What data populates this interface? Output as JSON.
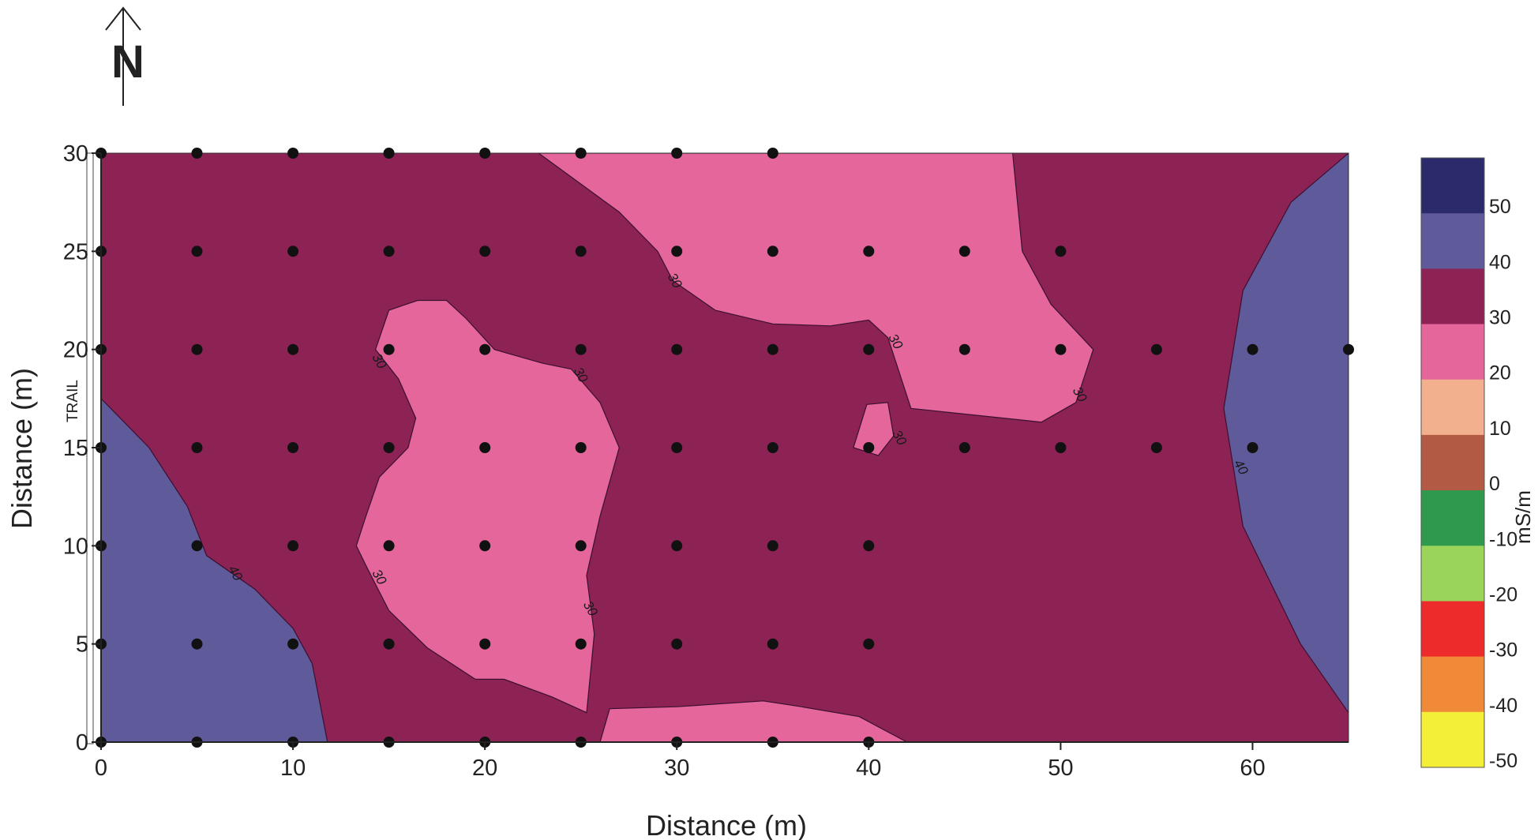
{
  "north_arrow": {
    "label": "N"
  },
  "trail_label": "TRAIL",
  "colorbar": {
    "unit": "mS/m",
    "levels": [
      50,
      40,
      30,
      20,
      10,
      0,
      -10,
      -20,
      -30,
      -40,
      -50
    ],
    "bins": [
      {
        "from": 50,
        "to": 60,
        "color": "#2b2a6b"
      },
      {
        "from": 40,
        "to": 50,
        "color": "#5f5a9a"
      },
      {
        "from": 30,
        "to": 40,
        "color": "#8d2255"
      },
      {
        "from": 20,
        "to": 30,
        "color": "#e4669a"
      },
      {
        "from": 10,
        "to": 20,
        "color": "#f2b08f"
      },
      {
        "from": 0,
        "to": 10,
        "color": "#b35a45"
      },
      {
        "from": -10,
        "to": 0,
        "color": "#2f9a4e"
      },
      {
        "from": -20,
        "to": -10,
        "color": "#9bd45a"
      },
      {
        "from": -30,
        "to": -20,
        "color": "#ee2b2b"
      },
      {
        "from": -40,
        "to": -30,
        "color": "#f08a38"
      },
      {
        "from": -50,
        "to": -40,
        "color": "#f3ee38"
      }
    ]
  },
  "chart_data": {
    "type": "contour",
    "xlabel": "Distance (m)",
    "ylabel": "Distance (m)",
    "xlim": [
      0,
      65
    ],
    "ylim": [
      0,
      30
    ],
    "xticks": [
      0,
      10,
      20,
      30,
      40,
      50,
      60
    ],
    "yticks": [
      0,
      5,
      10,
      15,
      20,
      25,
      30
    ],
    "background_level": {
      "range": [
        30,
        40
      ],
      "color": "#8d2255"
    },
    "regions": [
      {
        "name": "",
        "range": [
          40,
          50
        ],
        "color": "#5f5a9a",
        "boundary": [
          [
            0,
            17.5
          ],
          [
            2.5,
            15
          ],
          [
            4.5,
            12
          ],
          [
            5.5,
            9.5
          ],
          [
            8,
            7.8
          ],
          [
            10,
            5.8
          ],
          [
            11,
            4
          ],
          [
            11.8,
            0
          ],
          [
            0,
            0
          ]
        ]
      },
      {
        "name": "",
        "range": [
          40,
          50
        ],
        "color": "#5f5a9a",
        "boundary": [
          [
            65,
            30
          ],
          [
            62,
            27.5
          ],
          [
            59.5,
            23
          ],
          [
            58.5,
            17
          ],
          [
            59.5,
            11
          ],
          [
            62.5,
            5
          ],
          [
            65,
            1.5
          ]
        ]
      },
      {
        "name": "",
        "range": [
          20,
          30
        ],
        "color": "#e4669a",
        "boundary": [
          [
            22.8,
            30
          ],
          [
            27,
            27
          ],
          [
            29,
            25
          ],
          [
            29.8,
            23.5
          ],
          [
            32,
            22
          ],
          [
            35,
            21.3
          ],
          [
            38,
            21.2
          ],
          [
            40,
            21.5
          ],
          [
            41,
            20.6
          ],
          [
            42.2,
            17
          ],
          [
            49,
            16.3
          ],
          [
            50.8,
            17.3
          ],
          [
            51.7,
            20
          ],
          [
            49.5,
            22.3
          ],
          [
            48,
            25
          ],
          [
            47.5,
            30
          ]
        ]
      },
      {
        "name": "",
        "range": [
          20,
          30
        ],
        "color": "#e4669a",
        "boundary": [
          [
            15,
            22
          ],
          [
            16.5,
            22.5
          ],
          [
            18,
            22.5
          ],
          [
            19,
            21.6
          ],
          [
            20.5,
            20
          ],
          [
            23,
            19.3
          ],
          [
            24.5,
            19
          ],
          [
            26,
            17.3
          ],
          [
            27,
            15
          ],
          [
            26,
            11.5
          ],
          [
            25.3,
            8.5
          ],
          [
            25.7,
            5.5
          ],
          [
            25.3,
            1.5
          ],
          [
            23.5,
            2.3
          ],
          [
            21,
            3.2
          ],
          [
            19.5,
            3.2
          ],
          [
            17,
            4.8
          ],
          [
            15,
            6.7
          ],
          [
            13.8,
            9
          ],
          [
            13.3,
            10
          ],
          [
            13.8,
            11.5
          ],
          [
            14.5,
            13.5
          ],
          [
            16,
            15
          ],
          [
            16.4,
            16.5
          ],
          [
            15.5,
            18.5
          ],
          [
            14.3,
            20
          ]
        ]
      },
      {
        "name": "",
        "range": [
          20,
          30
        ],
        "color": "#e4669a",
        "boundary": [
          [
            39.9,
            17.2
          ],
          [
            41,
            17.3
          ],
          [
            41.3,
            15.6
          ],
          [
            40.5,
            14.6
          ],
          [
            39.2,
            15
          ]
        ]
      },
      {
        "name": "",
        "range": [
          20,
          30
        ],
        "color": "#e4669a",
        "boundary": [
          [
            26,
            0
          ],
          [
            26.5,
            1.7
          ],
          [
            30,
            1.8
          ],
          [
            34.5,
            2.1
          ],
          [
            36.5,
            1.8
          ],
          [
            39.5,
            1.3
          ],
          [
            42,
            0
          ]
        ]
      }
    ],
    "contour_labels": [
      {
        "x": 14.3,
        "y": 19.3,
        "text": "30"
      },
      {
        "x": 24.8,
        "y": 18.6,
        "text": "30"
      },
      {
        "x": 29.7,
        "y": 23.4,
        "text": "30"
      },
      {
        "x": 41.2,
        "y": 20.3,
        "text": "30"
      },
      {
        "x": 41.4,
        "y": 15.4,
        "text": "30"
      },
      {
        "x": 50.8,
        "y": 17.6,
        "text": "30"
      },
      {
        "x": 14.3,
        "y": 8.3,
        "text": "30"
      },
      {
        "x": 25.3,
        "y": 6.7,
        "text": "30"
      },
      {
        "x": 6.8,
        "y": 8.5,
        "text": "40"
      },
      {
        "x": 59.2,
        "y": 13.9,
        "text": "40"
      }
    ],
    "sample_points": [
      [
        0,
        30
      ],
      [
        5,
        30
      ],
      [
        10,
        30
      ],
      [
        15,
        30
      ],
      [
        20,
        30
      ],
      [
        25,
        30
      ],
      [
        30,
        30
      ],
      [
        35,
        30
      ],
      [
        0,
        25
      ],
      [
        5,
        25
      ],
      [
        10,
        25
      ],
      [
        15,
        25
      ],
      [
        20,
        25
      ],
      [
        25,
        25
      ],
      [
        30,
        25
      ],
      [
        35,
        25
      ],
      [
        40,
        25
      ],
      [
        45,
        25
      ],
      [
        50,
        25
      ],
      [
        0,
        20
      ],
      [
        5,
        20
      ],
      [
        10,
        20
      ],
      [
        15,
        20
      ],
      [
        20,
        20
      ],
      [
        25,
        20
      ],
      [
        30,
        20
      ],
      [
        35,
        20
      ],
      [
        40,
        20
      ],
      [
        45,
        20
      ],
      [
        50,
        20
      ],
      [
        55,
        20
      ],
      [
        60,
        20
      ],
      [
        65,
        20
      ],
      [
        0,
        15
      ],
      [
        5,
        15
      ],
      [
        10,
        15
      ],
      [
        15,
        15
      ],
      [
        20,
        15
      ],
      [
        25,
        15
      ],
      [
        30,
        15
      ],
      [
        35,
        15
      ],
      [
        40,
        15
      ],
      [
        45,
        15
      ],
      [
        50,
        15
      ],
      [
        55,
        15
      ],
      [
        60,
        15
      ],
      [
        0,
        10
      ],
      [
        5,
        10
      ],
      [
        10,
        10
      ],
      [
        15,
        10
      ],
      [
        20,
        10
      ],
      [
        25,
        10
      ],
      [
        30,
        10
      ],
      [
        35,
        10
      ],
      [
        40,
        10
      ],
      [
        0,
        5
      ],
      [
        5,
        5
      ],
      [
        10,
        5
      ],
      [
        15,
        5
      ],
      [
        20,
        5
      ],
      [
        25,
        5
      ],
      [
        30,
        5
      ],
      [
        35,
        5
      ],
      [
        40,
        5
      ],
      [
        0,
        0
      ],
      [
        5,
        0
      ],
      [
        10,
        0
      ],
      [
        15,
        0
      ],
      [
        20,
        0
      ],
      [
        25,
        0
      ],
      [
        30,
        0
      ],
      [
        35,
        0
      ],
      [
        40,
        0
      ]
    ]
  }
}
